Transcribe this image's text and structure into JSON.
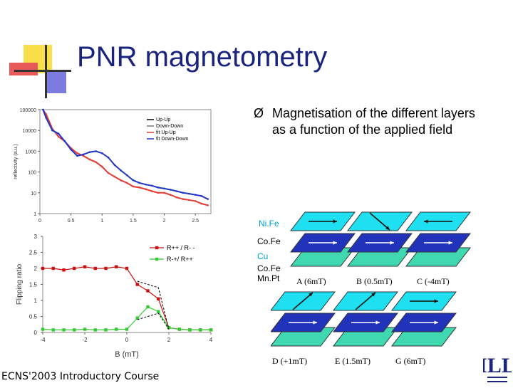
{
  "title": "PNR magnetometry",
  "bullet": {
    "symbol": "Ø",
    "text": "Magnetisation of the different layers as a function of the applied field"
  },
  "footer": "ECNS'2003 Introductory Course",
  "chart_data": [
    {
      "type": "line",
      "title": "",
      "xlabel": "",
      "ylabel": "reflectivity (a.u.)",
      "yscale": "log",
      "xlim": [
        0,
        2.75
      ],
      "ylim": [
        1,
        100000
      ],
      "x_ticks": [
        "0",
        "0.5",
        "1",
        "1.5",
        "2",
        "2.5"
      ],
      "y_ticks": [
        "100000",
        "10000",
        "1000",
        "100",
        "10",
        "1"
      ],
      "legend": {
        "placement": "top-right",
        "entries": [
          "Up-Up",
          "Down-Down",
          "fit Up-Up",
          "fit Down-Down"
        ]
      },
      "series": [
        {
          "name": "fit Up-Up",
          "color": "#e53935",
          "x": [
            0.05,
            0.1,
            0.2,
            0.3,
            0.4,
            0.5,
            0.6,
            0.7,
            0.8,
            0.9,
            1.0,
            1.1,
            1.2,
            1.3,
            1.4,
            1.5,
            1.6,
            1.7,
            1.8,
            1.9,
            2.0,
            2.1,
            2.2,
            2.3,
            2.4,
            2.5,
            2.6,
            2.7
          ],
          "y": [
            100000,
            60000,
            12000,
            5000,
            3000,
            1400,
            800,
            600,
            400,
            300,
            180,
            90,
            60,
            40,
            30,
            20,
            18,
            15,
            12,
            10,
            10,
            8,
            6,
            5,
            4.5,
            4,
            3,
            2.5
          ]
        },
        {
          "name": "fit Down-Down",
          "color": "#1e35c8",
          "x": [
            0.05,
            0.1,
            0.2,
            0.3,
            0.4,
            0.5,
            0.6,
            0.7,
            0.8,
            0.9,
            1.0,
            1.1,
            1.2,
            1.3,
            1.4,
            1.5,
            1.6,
            1.7,
            1.8,
            1.9,
            2.0,
            2.1,
            2.2,
            2.3,
            2.4,
            2.5,
            2.6,
            2.7
          ],
          "y": [
            100000,
            40000,
            10000,
            7000,
            3000,
            1200,
            600,
            700,
            900,
            1000,
            800,
            500,
            220,
            120,
            70,
            40,
            30,
            25,
            22,
            18,
            16,
            14,
            12,
            10,
            9,
            8,
            7,
            5
          ]
        }
      ]
    },
    {
      "type": "line",
      "title": "",
      "xlabel": "B (mT)",
      "ylabel": "Flipping ratio",
      "xlim": [
        -4,
        4
      ],
      "ylim": [
        0,
        3
      ],
      "x_ticks": [
        "-4",
        "-2",
        "0",
        "2",
        "4"
      ],
      "y_ticks": [
        "3",
        "2.5",
        "2",
        "1.5",
        "1",
        "0.5",
        "0"
      ],
      "legend": {
        "placement": "top-right",
        "entries": [
          "R++ / R- -",
          "R-+/ R++"
        ]
      },
      "series": [
        {
          "name": "R++ / R- -",
          "color": "#cc1010",
          "x": [
            -4,
            -3.5,
            -3,
            -2.5,
            -2,
            -1.5,
            -1,
            -0.5,
            0,
            0.5,
            1,
            1.5,
            2,
            2.5,
            3,
            3.5,
            4
          ],
          "y": [
            2,
            2,
            1.95,
            2,
            2.05,
            2,
            2,
            2.05,
            2,
            1.5,
            1.3,
            1.05,
            0.15,
            0.1,
            0.08,
            0.08,
            0.08
          ]
        },
        {
          "name": "R-+/ R++",
          "color": "#33cc33",
          "x": [
            -4,
            -3.5,
            -3,
            -2.5,
            -2,
            -1.5,
            -1,
            -0.5,
            0,
            0.5,
            1,
            1.5,
            2,
            2.5,
            3,
            3.5,
            4
          ],
          "y": [
            0.1,
            0.08,
            0.08,
            0.08,
            0.1,
            0.08,
            0.08,
            0.1,
            0.1,
            0.45,
            0.8,
            0.65,
            0.15,
            0.1,
            0.08,
            0.08,
            0.08
          ]
        }
      ]
    }
  ],
  "layers": {
    "labels": [
      "Ni.Fe",
      "Co.Fe",
      "Cu",
      "Co.Fe",
      "Mn.Pt"
    ],
    "configs_top": [
      "A (6mT)",
      "B (0.5mT)",
      "C (-4mT)"
    ],
    "configs_bottom": [
      "D (+1mT)",
      "E (1.5mT)",
      "G (6mT)"
    ]
  },
  "logo_text": "ILL"
}
